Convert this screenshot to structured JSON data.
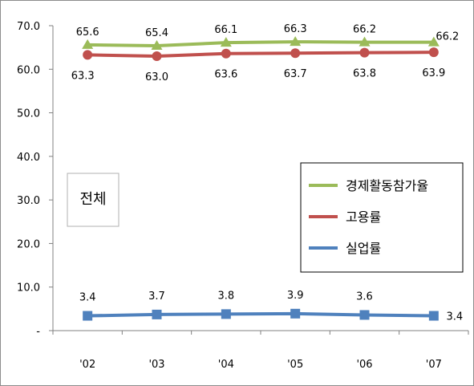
{
  "chart_data": {
    "type": "line",
    "categories": [
      "'02",
      "'03",
      "'04",
      "'05",
      "'06",
      "'07"
    ],
    "y_ticks": [
      "-",
      "10.0",
      "20.0",
      "30.0",
      "40.0",
      "50.0",
      "60.0",
      "70.0"
    ],
    "ylim": [
      0,
      70
    ],
    "grid": false,
    "legend_position": "right",
    "annotation": "전체",
    "series": [
      {
        "name": "경제활동참가율",
        "color": "#9bbb59",
        "marker": "triangle",
        "values": [
          65.6,
          65.4,
          66.1,
          66.3,
          66.2,
          66.2
        ],
        "labels": [
          "65.6",
          "65.4",
          "66.1",
          "66.3",
          "66.2",
          "66.2"
        ]
      },
      {
        "name": "고용률",
        "color": "#c0504d",
        "marker": "circle",
        "values": [
          63.3,
          63.0,
          63.6,
          63.7,
          63.8,
          63.9
        ],
        "labels": [
          "63.3",
          "63.0",
          "63.6",
          "63.7",
          "63.8",
          "63.9"
        ]
      },
      {
        "name": "실업률",
        "color": "#4f81bd",
        "marker": "square",
        "values": [
          3.4,
          3.7,
          3.8,
          3.9,
          3.6,
          3.4
        ],
        "labels": [
          "3.4",
          "3.7",
          "3.8",
          "3.9",
          "3.6",
          "3.4"
        ]
      }
    ]
  }
}
